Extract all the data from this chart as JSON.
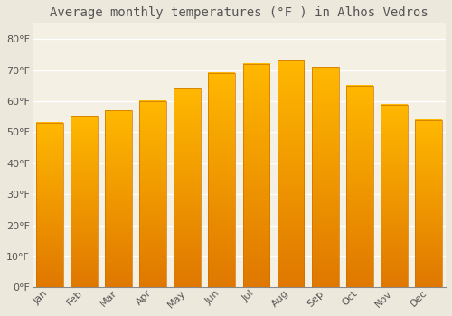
{
  "title": "Average monthly temperatures (°F ) in Alhos Vedros",
  "months": [
    "Jan",
    "Feb",
    "Mar",
    "Apr",
    "May",
    "Jun",
    "Jul",
    "Aug",
    "Sep",
    "Oct",
    "Nov",
    "Dec"
  ],
  "values": [
    53,
    55,
    57,
    60,
    64,
    69,
    72,
    73,
    71,
    65,
    59,
    54
  ],
  "bar_color_top": "#FFB700",
  "bar_color_bottom": "#E07000",
  "bar_color_edge": "#CC7000",
  "background_color": "#EDE8DC",
  "plot_bg_color": "#F5F0E4",
  "grid_color": "#FFFFFF",
  "text_color": "#555555",
  "ylim": [
    0,
    85
  ],
  "yticks": [
    0,
    10,
    20,
    30,
    40,
    50,
    60,
    70,
    80
  ],
  "ytick_labels": [
    "0°F",
    "10°F",
    "20°F",
    "30°F",
    "40°F",
    "50°F",
    "60°F",
    "70°F",
    "80°F"
  ],
  "title_fontsize": 10,
  "tick_fontsize": 8,
  "bar_width": 0.78
}
